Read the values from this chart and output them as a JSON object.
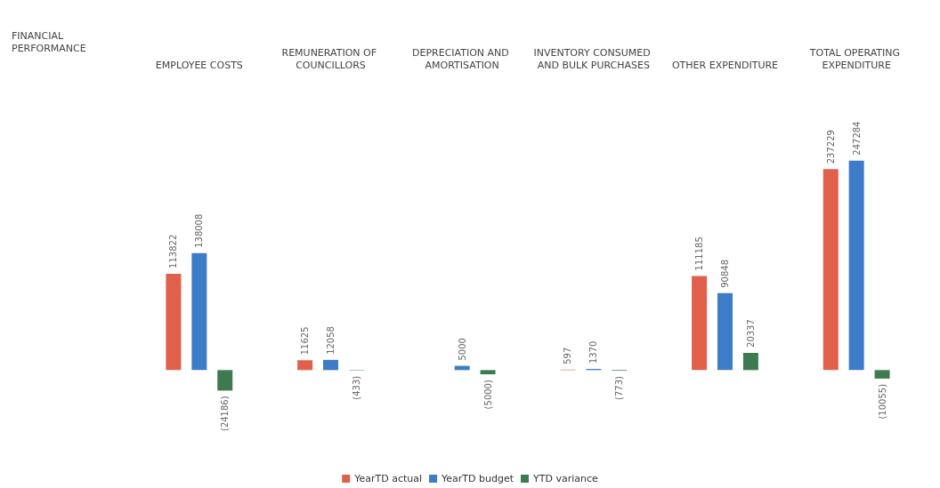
{
  "chart_data": {
    "type": "bar",
    "title": "FINANCIAL PERFORMANCE",
    "categories": [
      "EMPLOYEE COSTS",
      "REMUNERATION OF COUNCILLORS",
      "DEPRECIATION AND AMORTISATION",
      "INVENTORY CONSUMED AND BULK PURCHASES",
      "OTHER EXPENDITURE",
      "TOTAL OPERATING EXPENDITURE"
    ],
    "series": [
      {
        "name": "YearTD actual",
        "color": "#e0604c",
        "values": [
          113822,
          11625,
          0,
          597,
          111185,
          237229
        ],
        "value_labels": [
          "113822",
          "11625",
          null,
          "597",
          "111185",
          "237229"
        ]
      },
      {
        "name": "YearTD budget",
        "color": "#3d7cc6",
        "values": [
          138008,
          12058,
          5000,
          1370,
          90848,
          247284
        ],
        "value_labels": [
          "138008",
          "12058",
          "5000",
          "1370",
          "90848",
          "247284"
        ]
      },
      {
        "name": "YTD variance",
        "color": "#3e7a50",
        "values": [
          -24186,
          -433,
          -5000,
          -773,
          20337,
          -10055
        ],
        "value_labels": [
          "(24186)",
          "(433)",
          "(5000)",
          "(773)",
          "20337",
          "(10055)"
        ]
      }
    ],
    "legend": "bottom",
    "grid": false
  }
}
